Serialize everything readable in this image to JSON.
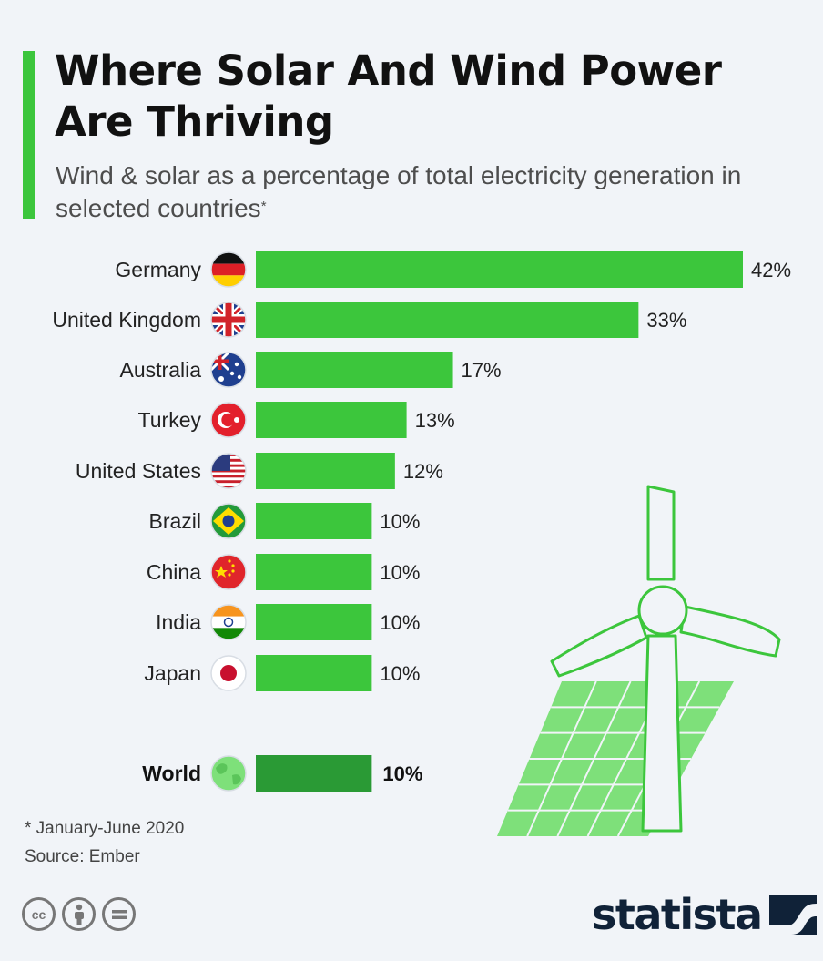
{
  "header": {
    "title": "Where Solar And Wind Power Are Thriving",
    "subtitle": "Wind & solar as a percentage of total electricity generation in selected countries",
    "subtitle_marker": "*"
  },
  "colors": {
    "accent": "#3cc63c",
    "bar": "#3cc63c",
    "bar_world": "#2a9a35",
    "brand": "#102238",
    "illustration_outline": "#3cc63c",
    "illustration_fill": "#7ee07a"
  },
  "chart_data": {
    "type": "bar",
    "orientation": "horizontal",
    "title": "Where Solar And Wind Power Are Thriving",
    "subtitle": "Wind & solar as a percentage of total electricity generation in selected countries",
    "xlabel": "",
    "ylabel": "",
    "unit": "%",
    "xlim": [
      0,
      42
    ],
    "grid": false,
    "categories": [
      "Germany",
      "United Kingdom",
      "Australia",
      "Turkey",
      "United States",
      "Brazil",
      "China",
      "India",
      "Japan"
    ],
    "values": [
      42,
      33,
      17,
      13,
      12,
      10,
      10,
      10,
      10
    ],
    "labels": [
      "42%",
      "33%",
      "17%",
      "13%",
      "12%",
      "10%",
      "10%",
      "10%",
      "10%"
    ],
    "flags": [
      "germany-flag-icon",
      "uk-flag-icon",
      "australia-flag-icon",
      "turkey-flag-icon",
      "us-flag-icon",
      "brazil-flag-icon",
      "china-flag-icon",
      "india-flag-icon",
      "japan-flag-icon"
    ],
    "reference": {
      "category": "World",
      "value": 10,
      "label": "10%",
      "icon": "globe-icon"
    }
  },
  "footer": {
    "footnote": "* January-June 2020",
    "source": "Source: Ember",
    "license_icons": [
      "cc-icon",
      "by-icon",
      "nd-icon"
    ],
    "brand": "statista"
  }
}
